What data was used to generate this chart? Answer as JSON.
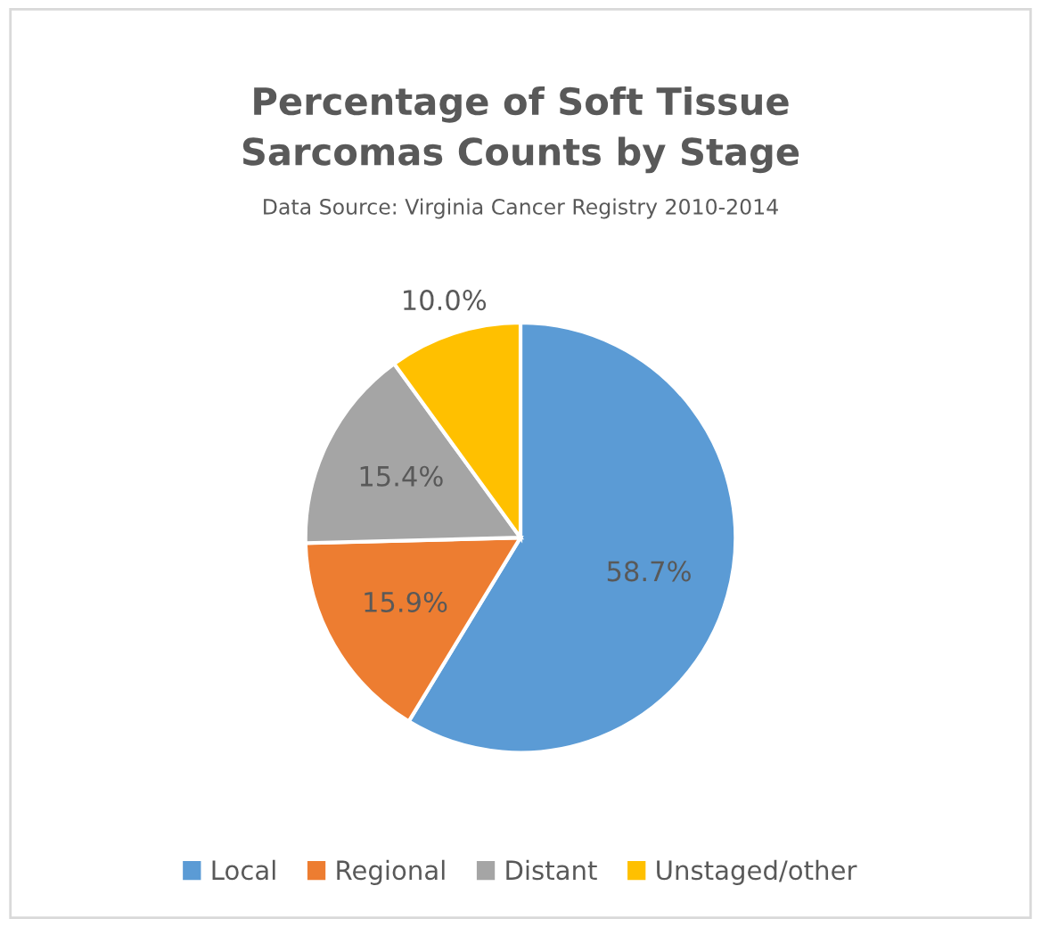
{
  "chart_data": {
    "type": "pie",
    "title": "Percentage of Soft Tissue\nSarcomas Counts by Stage",
    "subtitle": "Data Source: Virginia Cancer Registry 2010-2014",
    "categories": [
      "Local",
      "Regional",
      "Distant",
      "Unstaged/other"
    ],
    "values": [
      58.7,
      15.9,
      15.4,
      10.0
    ],
    "colors": [
      "#5b9bd5",
      "#ed7d31",
      "#a5a5a5",
      "#ffc000"
    ],
    "value_labels": [
      "58.7%",
      "15.9%",
      "15.4%",
      "10.0%"
    ],
    "legend": "bottom"
  }
}
